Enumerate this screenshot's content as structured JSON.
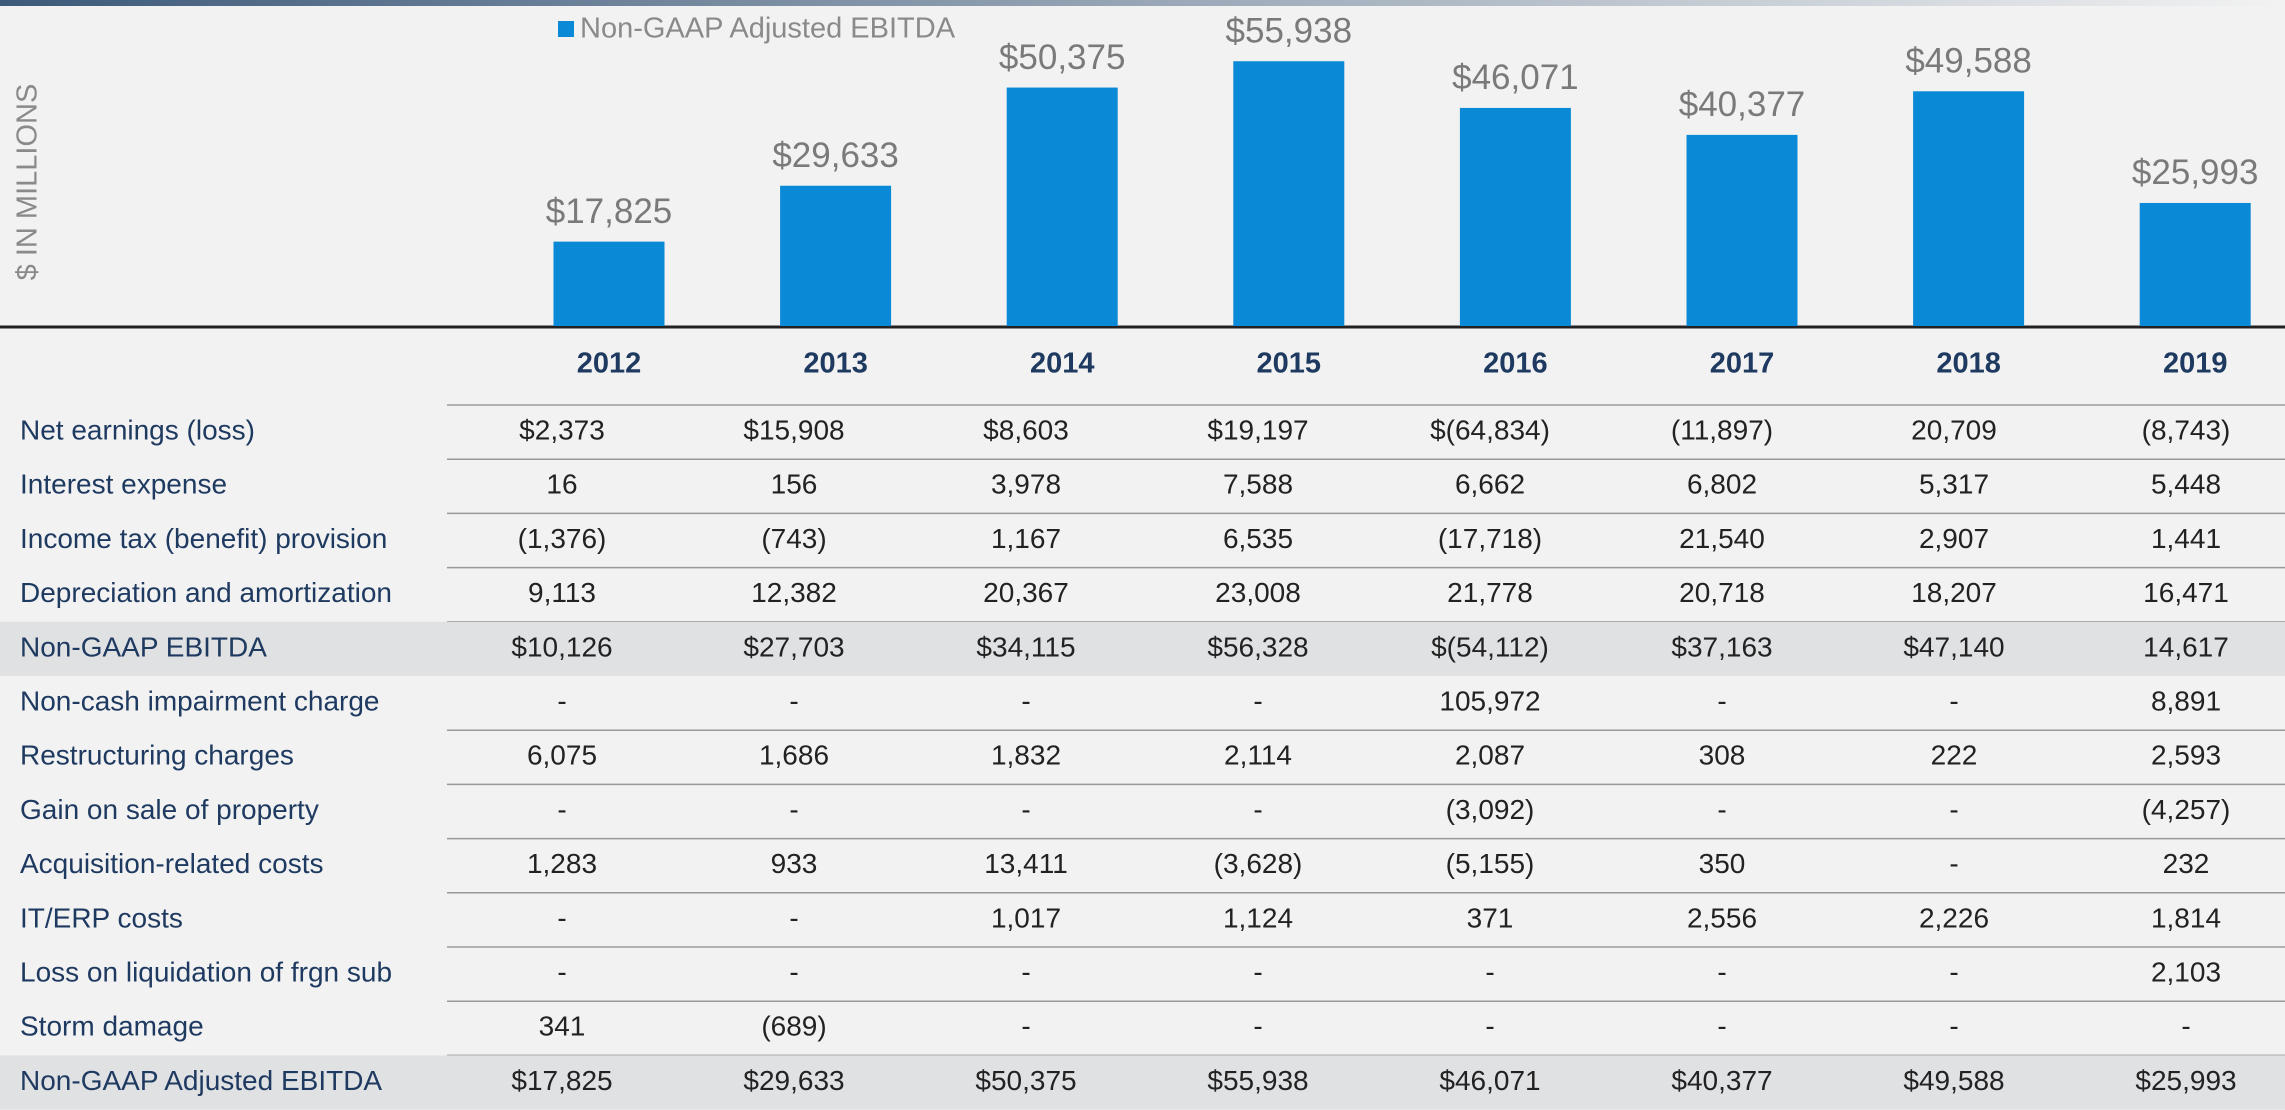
{
  "chart_data": {
    "type": "bar",
    "y_label": "$ IN MILLIONS",
    "categories": [
      "2012",
      "2013",
      "2014",
      "2015",
      "2016",
      "2017",
      "2018",
      "2019"
    ],
    "series": [
      {
        "name": "Non-GAAP Adjusted EBITDA",
        "color": "#0a8ad6",
        "values": [
          17825,
          29633,
          50375,
          55938,
          46071,
          40377,
          49588,
          25993
        ],
        "value_labels": [
          "$17,825",
          "$29,633",
          "$50,375",
          "$55,938",
          "$46,071",
          "$40,377",
          "$49,588",
          "$25,993"
        ]
      }
    ],
    "ylim": [
      0,
      60000
    ]
  },
  "table": {
    "rows": [
      [
        "Net earnings (loss)",
        "$2,373",
        "$15,908",
        "$8,603",
        "$19,197",
        "$(64,834)",
        "(11,897)",
        "20,709",
        "(8,743)"
      ],
      [
        "Interest expense",
        "16",
        "156",
        "3,978",
        "7,588",
        "6,662",
        "6,802",
        "5,317",
        "5,448"
      ],
      [
        "Income tax (benefit) provision",
        "(1,376)",
        "(743)",
        "1,167",
        "6,535",
        "(17,718)",
        "21,540",
        "2,907",
        "1,441"
      ],
      [
        "Depreciation and amortization",
        "9,113",
        "12,382",
        "20,367",
        "23,008",
        "21,778",
        "20,718",
        "18,207",
        "16,471"
      ],
      [
        "Non-GAAP EBITDA",
        "$10,126",
        "$27,703",
        "$34,115",
        "$56,328",
        "$(54,112)",
        "$37,163",
        "$47,140",
        "14,617"
      ],
      [
        "Non-cash impairment charge",
        "-",
        "-",
        "-",
        "-",
        "105,972",
        "-",
        "-",
        "8,891"
      ],
      [
        "Restructuring charges",
        "6,075",
        "1,686",
        "1,832",
        "2,114",
        "2,087",
        "308",
        "222",
        "2,593"
      ],
      [
        "Gain on sale of property",
        "-",
        "-",
        "-",
        "-",
        "(3,092)",
        "-",
        "-",
        "(4,257)"
      ],
      [
        "Acquisition-related costs",
        "1,283",
        "933",
        "13,411",
        "(3,628)",
        "(5,155)",
        "350",
        "-",
        "232"
      ],
      [
        "IT/ERP costs",
        "-",
        "-",
        "1,017",
        "1,124",
        "371",
        "2,556",
        "2,226",
        "1,814"
      ],
      [
        "Loss on liquidation of frgn sub",
        "-",
        "-",
        "-",
        "-",
        "-",
        "-",
        "-",
        "2,103"
      ],
      [
        "Storm damage",
        "341",
        "(689)",
        "-",
        "-",
        "-",
        "-",
        "-",
        "-"
      ],
      [
        "Non-GAAP Adjusted EBITDA",
        "$17,825",
        "$29,633",
        "$50,375",
        "$55,938",
        "$46,071",
        "$40,377",
        "$49,588",
        "$25,993"
      ]
    ]
  }
}
